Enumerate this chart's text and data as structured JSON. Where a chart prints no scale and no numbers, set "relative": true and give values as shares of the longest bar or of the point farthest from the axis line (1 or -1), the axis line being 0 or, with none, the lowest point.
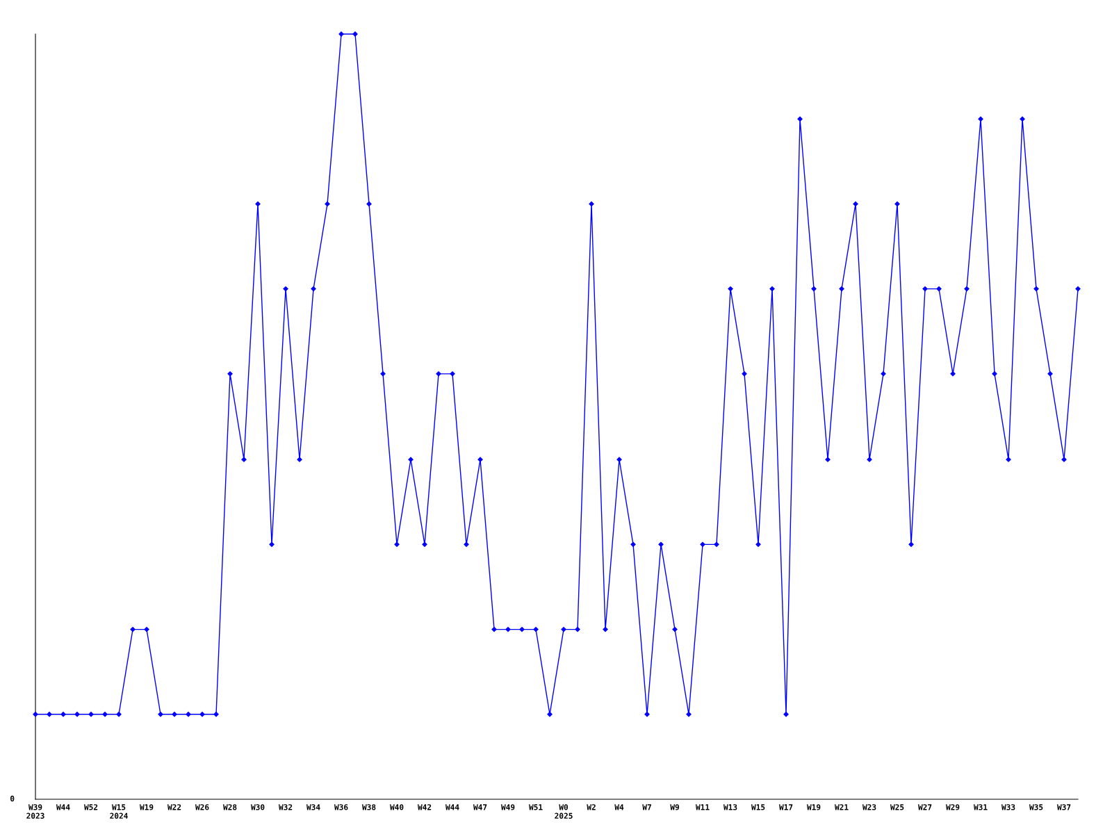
{
  "chart_data": {
    "type": "line",
    "relative": true,
    "color": "#0000ff",
    "marker": "diamond",
    "grid": false,
    "categories": [
      "W39\n2023",
      null,
      "W44",
      null,
      "W52",
      null,
      "W15\n2024",
      null,
      "W19",
      null,
      "W22",
      null,
      "W26",
      null,
      "W28",
      null,
      "W30",
      null,
      "W32",
      null,
      "W34",
      null,
      "W36",
      null,
      "W38",
      null,
      "W40",
      null,
      "W42",
      null,
      "W44",
      null,
      "W47",
      null,
      "W49",
      null,
      "W51",
      null,
      "W0\n2025",
      null,
      "W2",
      null,
      "W4",
      null,
      "W7",
      null,
      "W9",
      null,
      "W11",
      null,
      "W13",
      null,
      "W15",
      null,
      "W17",
      null,
      "W19",
      null,
      "W21",
      null,
      "W23",
      null,
      "W25",
      null,
      "W27",
      null,
      "W29",
      null,
      "W31",
      null,
      "W33",
      null,
      "W35",
      null,
      "W37",
      null
    ],
    "values": [
      0.111,
      0.111,
      0.111,
      0.111,
      0.111,
      0.111,
      0.111,
      0.222,
      0.222,
      0.111,
      0.111,
      0.111,
      0.111,
      0.111,
      0.556,
      0.444,
      0.778,
      0.333,
      0.667,
      0.444,
      0.667,
      0.778,
      1,
      1,
      0.778,
      0.556,
      0.333,
      0.444,
      0.333,
      0.556,
      0.556,
      0.333,
      0.444,
      0.222,
      0.222,
      0.222,
      0.222,
      0.111,
      0.222,
      0.222,
      0.778,
      0.222,
      0.444,
      0.333,
      0.111,
      0.333,
      0.222,
      0.111,
      0.333,
      0.333,
      0.667,
      0.556,
      0.333,
      0.667,
      0.111,
      0.889,
      0.667,
      0.444,
      0.667,
      0.778,
      0.444,
      0.556,
      0.778,
      0.333,
      0.667,
      0.667,
      0.556,
      0.667,
      0.889,
      0.556,
      0.444,
      0.889,
      0.667,
      0.556,
      0.444,
      0.667
    ],
    "annotations": [
      "0"
    ]
  }
}
